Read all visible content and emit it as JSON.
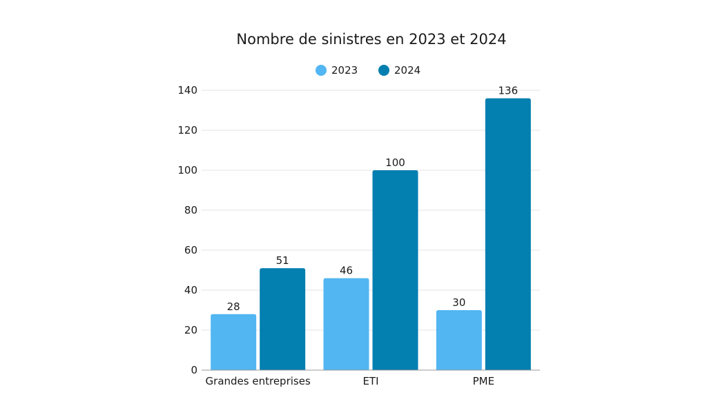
{
  "chart_data": {
    "type": "bar",
    "title": "Nombre de sinistres en 2023 et 2024",
    "categories": [
      "Grandes entreprises",
      "ETI",
      "PME"
    ],
    "series": [
      {
        "name": "2023",
        "values": [
          28,
          46,
          30
        ],
        "color": "#52b6f2"
      },
      {
        "name": "2024",
        "values": [
          51,
          100,
          136
        ],
        "color": "#037fb0"
      }
    ],
    "ylim": [
      0,
      140
    ],
    "yticks": [
      0,
      20,
      40,
      60,
      80,
      100,
      120,
      140
    ],
    "grid": true,
    "legend": "top",
    "data_labels": true
  }
}
